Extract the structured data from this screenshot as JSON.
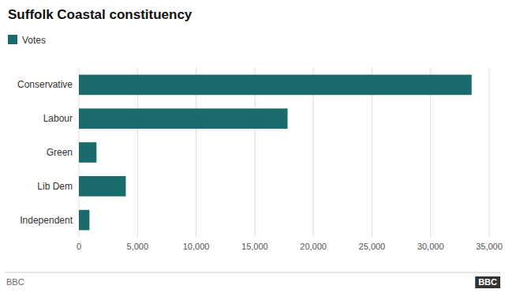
{
  "chart_data": {
    "type": "bar",
    "orientation": "horizontal",
    "title": "Suffolk Coastal constituency",
    "categories": [
      "Conservative",
      "Labour",
      "Green",
      "Lib Dem",
      "Independent"
    ],
    "series": [
      {
        "name": "Votes",
        "color": "#1a6b6b",
        "values": [
          33500,
          17800,
          1500,
          4000,
          900
        ]
      }
    ],
    "xlim": [
      0,
      35000
    ],
    "xticks": [
      0,
      {
        "value": 5000,
        "label": "5,000"
      },
      {
        "value": 10000,
        "label": "10,000"
      },
      {
        "value": 15000,
        "label": "15,000"
      },
      {
        "value": 20000,
        "label": "20,000"
      },
      {
        "value": 25000,
        "label": "25,000"
      },
      {
        "value": 30000,
        "label": "30,000"
      },
      {
        "value": 35000,
        "label": "35,000"
      }
    ],
    "grid": true,
    "legend": "top-left",
    "annotations": [
      "BBC",
      "BBC"
    ]
  }
}
